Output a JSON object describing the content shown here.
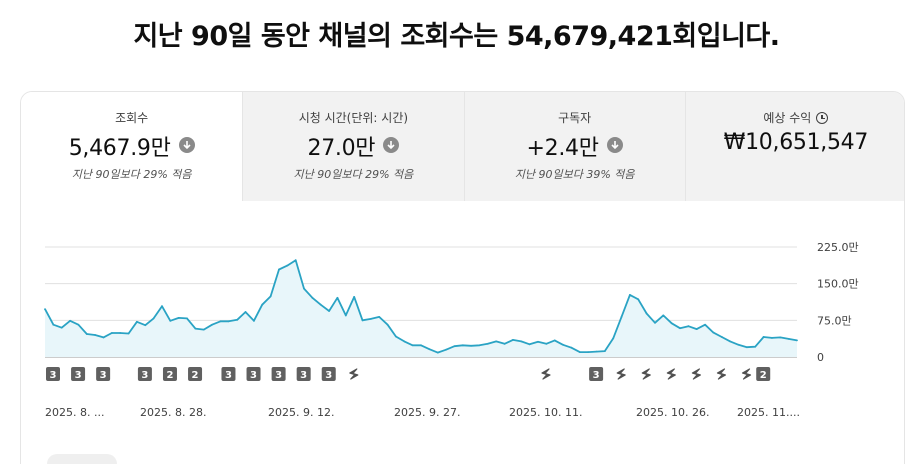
{
  "headline": "지난 90일 동안 채널의 조회수는 54,679,421회입니다.",
  "metrics": [
    {
      "label": "조회수",
      "value": "5,467.9만",
      "sub": "지난 90일보다 29% 적음",
      "trend_icon": "arrow-down-circle-icon"
    },
    {
      "label": "시청 시간(단위: 시간)",
      "value": "27.0만",
      "sub": "지난 90일보다 29% 적음",
      "trend_icon": "arrow-down-circle-icon"
    },
    {
      "label": "구독자",
      "value": "+2.4만",
      "sub": "지난 90일보다 39% 적음",
      "trend_icon": "arrow-down-circle-icon"
    },
    {
      "label": "예상 수익",
      "value": "₩10,651,547",
      "sub": "",
      "trend_icon": "clock-icon"
    }
  ],
  "colors": {
    "line": "#2aa3c4",
    "fill": "#e8f6fa",
    "grid": "#e0e0e0",
    "marker_bg": "#606060"
  },
  "chart_data": {
    "type": "area",
    "y_ticks": [
      "0",
      "75.0만",
      "150.0만",
      "225.0만"
    ],
    "ylim": [
      0,
      225
    ],
    "y_unit": "만",
    "x_tick_labels": [
      "2025. 8. ...",
      "2025. 8. 28.",
      "2025. 9. 12.",
      "2025. 9. 27.",
      "2025. 10. 11.",
      "2025. 10. 26.",
      "2025. 11...."
    ],
    "values": [
      98,
      66,
      60,
      74,
      66,
      47,
      45,
      40,
      49,
      49,
      48,
      72,
      65,
      79,
      104,
      74,
      80,
      79,
      58,
      56,
      66,
      73,
      73,
      76,
      92,
      74,
      107,
      124,
      179,
      187,
      198,
      140,
      121,
      107,
      94,
      121,
      85,
      123,
      75,
      78,
      82,
      66,
      42,
      32,
      24,
      24,
      16,
      9,
      15,
      22,
      24,
      23,
      24,
      27,
      32,
      27,
      35,
      32,
      26,
      31,
      27,
      34,
      25,
      19,
      10,
      10,
      11,
      12,
      38,
      82,
      127,
      118,
      89,
      70,
      85,
      69,
      59,
      63,
      57,
      66,
      50,
      41,
      32,
      25,
      20,
      21,
      41,
      39,
      40,
      37,
      34
    ],
    "markers": [
      {
        "i": 0,
        "label": "3"
      },
      {
        "i": 3,
        "label": "3"
      },
      {
        "i": 6,
        "label": "3"
      },
      {
        "i": 11,
        "label": "3"
      },
      {
        "i": 14,
        "label": "2"
      },
      {
        "i": 17,
        "label": "2"
      },
      {
        "i": 21,
        "label": "3"
      },
      {
        "i": 24,
        "label": "3"
      },
      {
        "i": 27,
        "label": "3"
      },
      {
        "i": 30,
        "label": "3"
      },
      {
        "i": 33,
        "label": "3"
      },
      {
        "i": 36,
        "label": "shorts"
      },
      {
        "i": 59,
        "label": "shorts"
      },
      {
        "i": 65,
        "label": "3"
      },
      {
        "i": 68,
        "label": "shorts"
      },
      {
        "i": 71,
        "label": "shorts"
      },
      {
        "i": 74,
        "label": "shorts"
      },
      {
        "i": 77,
        "label": "shorts"
      },
      {
        "i": 80,
        "label": "shorts"
      },
      {
        "i": 83,
        "label": "shorts"
      },
      {
        "i": 85,
        "label": "2"
      }
    ]
  }
}
